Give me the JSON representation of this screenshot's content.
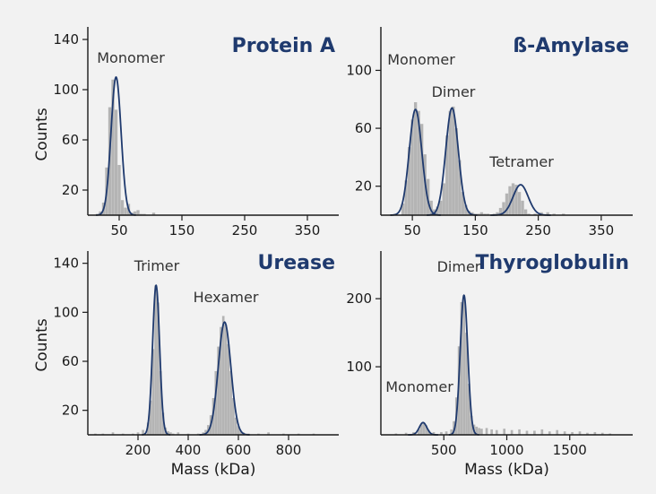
{
  "colors": {
    "background": "#f2f2f2",
    "title": "#1f3a6e",
    "fit_line": "#1f3a6e",
    "histogram": "#b4b4b4",
    "axis": "#1a1a1a"
  },
  "shared_labels": {
    "ylabel": "Counts",
    "xlabel": "Mass (kDa)"
  },
  "chart_data": [
    {
      "type": "bar",
      "title": "Protein A",
      "ylabel": "Counts",
      "xlabel": "",
      "xlim": [
        0,
        400
      ],
      "ylim": [
        0,
        150
      ],
      "xticks": [
        50,
        150,
        250,
        350
      ],
      "yticks": [
        20,
        60,
        100,
        140
      ],
      "bin_width": 5,
      "histogram": {
        "x": [
          15,
          20,
          25,
          30,
          35,
          40,
          45,
          50,
          55,
          60,
          65,
          70,
          75,
          80,
          85,
          90,
          95,
          100,
          105,
          110
        ],
        "counts": [
          1,
          3,
          10,
          38,
          86,
          108,
          84,
          40,
          12,
          6,
          9,
          2,
          3,
          4,
          1,
          1,
          0,
          0,
          2,
          0
        ]
      },
      "peaks": [
        {
          "label": "Monomer",
          "mass": 45,
          "sigma": 8,
          "height": 110
        }
      ]
    },
    {
      "type": "bar",
      "title": "ß-Amylase",
      "ylabel": "",
      "xlabel": "",
      "xlim": [
        0,
        400
      ],
      "ylim": [
        0,
        130
      ],
      "xticks": [
        50,
        150,
        250,
        350
      ],
      "yticks": [
        20,
        60,
        100
      ],
      "bin_width": 5,
      "histogram": {
        "x": [
          35,
          40,
          45,
          50,
          55,
          60,
          65,
          70,
          75,
          80,
          85,
          90,
          95,
          100,
          105,
          110,
          115,
          120,
          125,
          130,
          135,
          140,
          145,
          150,
          155,
          160,
          165,
          170,
          175,
          180,
          185,
          190,
          195,
          200,
          205,
          210,
          215,
          220,
          225,
          230,
          235,
          240,
          245,
          250,
          255,
          260,
          265,
          270,
          275,
          280,
          285,
          290
        ],
        "counts": [
          8,
          24,
          47,
          66,
          78,
          72,
          63,
          42,
          25,
          10,
          4,
          6,
          10,
          22,
          55,
          72,
          75,
          60,
          38,
          16,
          7,
          3,
          2,
          1,
          1,
          2,
          1,
          1,
          0,
          1,
          2,
          5,
          9,
          15,
          20,
          22,
          21,
          16,
          10,
          4,
          1,
          0,
          1,
          0,
          2,
          0,
          2,
          0,
          1,
          0,
          0,
          1
        ]
      },
      "peaks": [
        {
          "label": "Monomer",
          "mass": 55,
          "sigma": 10,
          "height": 73
        },
        {
          "label": "Dimer",
          "mass": 113,
          "sigma": 10,
          "height": 74
        },
        {
          "label": "Tetramer",
          "mass": 222,
          "sigma": 12,
          "height": 21
        }
      ]
    },
    {
      "type": "bar",
      "title": "Urease",
      "ylabel": "Counts",
      "xlabel": "Mass (kDa)",
      "xlim": [
        0,
        1000
      ],
      "ylim": [
        0,
        150
      ],
      "xticks": [
        200,
        400,
        600,
        800
      ],
      "yticks": [
        20,
        60,
        100,
        140
      ],
      "bin_width": 10,
      "histogram": {
        "x": [
          30,
          60,
          100,
          140,
          180,
          200,
          220,
          240,
          250,
          260,
          270,
          280,
          290,
          300,
          310,
          320,
          330,
          340,
          360,
          400,
          440,
          460,
          470,
          480,
          490,
          500,
          510,
          520,
          530,
          540,
          550,
          560,
          570,
          580,
          590,
          600,
          610,
          620,
          640,
          680,
          720,
          780,
          840,
          900
        ],
        "counts": [
          1,
          1,
          2,
          1,
          1,
          2,
          4,
          10,
          28,
          70,
          122,
          108,
          52,
          18,
          6,
          3,
          2,
          1,
          2,
          1,
          1,
          2,
          4,
          8,
          16,
          30,
          52,
          72,
          88,
          97,
          90,
          74,
          52,
          30,
          14,
          7,
          3,
          2,
          1,
          1,
          2,
          1,
          1,
          1
        ]
      },
      "peaks": [
        {
          "label": "Trimer",
          "mass": 272,
          "sigma": 14,
          "height": 122
        },
        {
          "label": "Hexamer",
          "mass": 545,
          "sigma": 25,
          "height": 92
        }
      ]
    },
    {
      "type": "bar",
      "title": "Thyroglobulin",
      "ylabel": "",
      "xlabel": "Mass (kDa)",
      "xlim": [
        0,
        2000
      ],
      "ylim": [
        0,
        270
      ],
      "xticks": [
        500,
        1000,
        1500
      ],
      "yticks": [
        100,
        200
      ],
      "bin_width": 20,
      "histogram": {
        "x": [
          120,
          200,
          260,
          300,
          320,
          340,
          360,
          380,
          420,
          480,
          520,
          560,
          580,
          600,
          620,
          640,
          660,
          680,
          700,
          720,
          740,
          760,
          780,
          800,
          840,
          880,
          920,
          980,
          1040,
          1100,
          1160,
          1220,
          1280,
          1340,
          1400,
          1460,
          1520,
          1580,
          1640,
          1700,
          1760,
          1820
        ],
        "counts": [
          2,
          3,
          4,
          8,
          15,
          18,
          14,
          7,
          4,
          4,
          5,
          8,
          20,
          55,
          130,
          195,
          205,
          150,
          75,
          28,
          15,
          12,
          10,
          9,
          10,
          8,
          7,
          9,
          7,
          8,
          6,
          6,
          8,
          5,
          7,
          5,
          4,
          5,
          3,
          4,
          3,
          2
        ]
      },
      "peaks": [
        {
          "label": "Monomer",
          "mass": 335,
          "sigma": 30,
          "height": 18
        },
        {
          "label": "Dimer",
          "mass": 660,
          "sigma": 30,
          "height": 205
        }
      ]
    }
  ]
}
